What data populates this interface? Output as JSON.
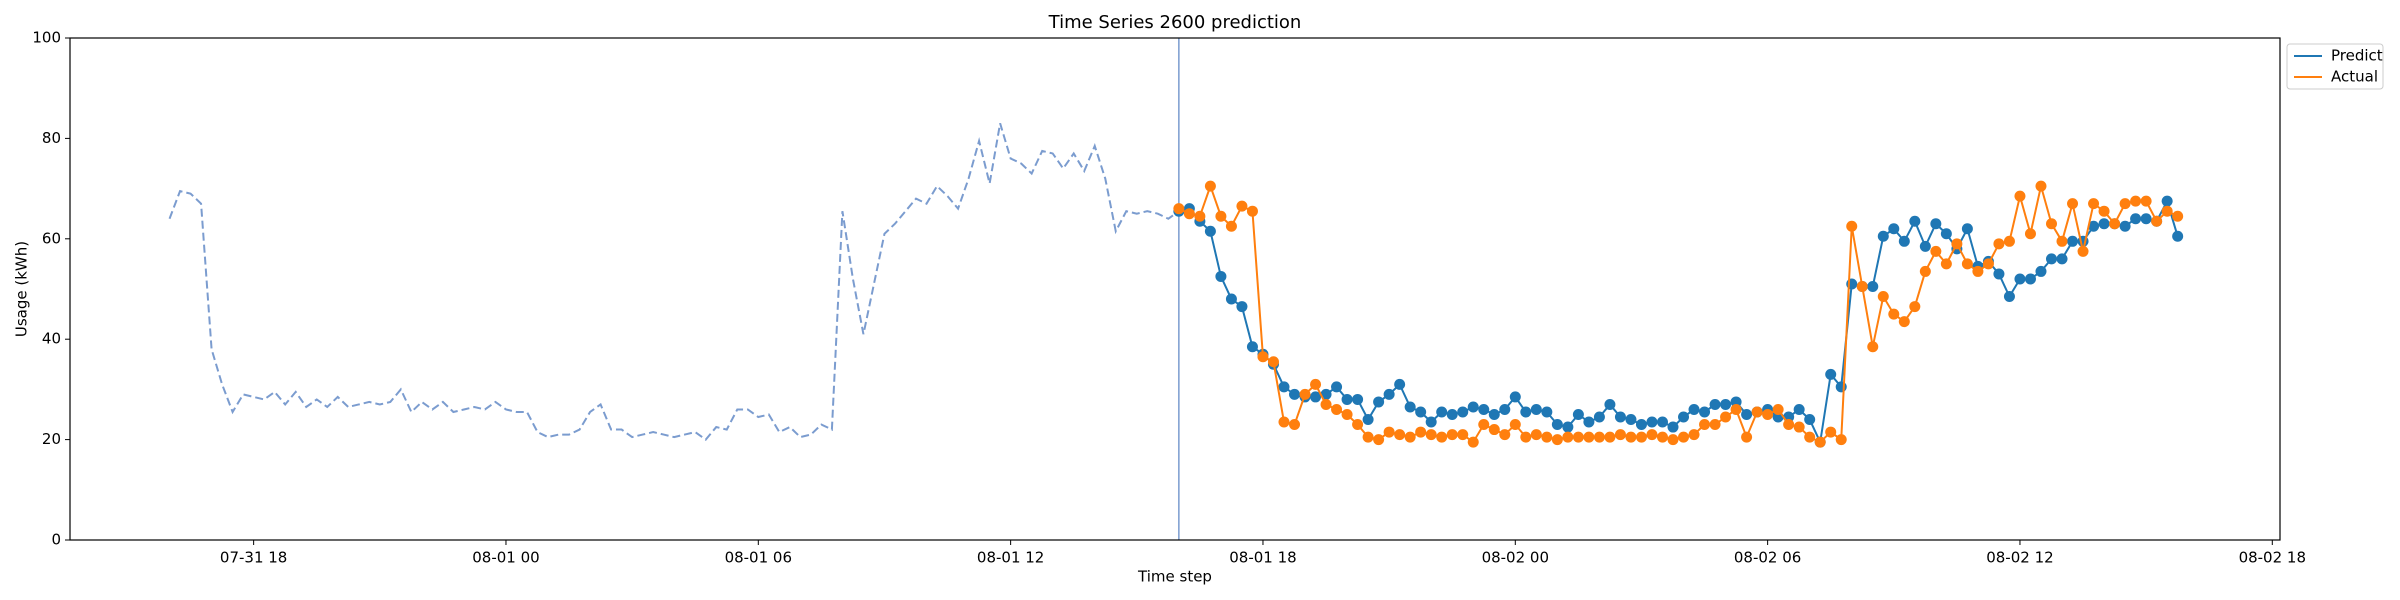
{
  "chart_data": {
    "type": "line",
    "title": "Time Series 2600 prediction",
    "xlabel": "Time step",
    "ylabel": "Usage (kWh)",
    "xlim": [
      "07-31 13:38",
      "08-02 18:11"
    ],
    "ylim": [
      0,
      100
    ],
    "yticks": [
      0,
      20,
      40,
      60,
      80,
      100
    ],
    "xticks": [
      {
        "value": "07-31 18:00",
        "label": "07-31 18"
      },
      {
        "value": "08-01 00:00",
        "label": "08-01 00"
      },
      {
        "value": "08-01 06:00",
        "label": "08-01 06"
      },
      {
        "value": "08-01 12:00",
        "label": "08-01 12"
      },
      {
        "value": "08-01 18:00",
        "label": "08-01 18"
      },
      {
        "value": "08-02 00:00",
        "label": "08-02 00"
      },
      {
        "value": "08-02 06:00",
        "label": "08-02 06"
      },
      {
        "value": "08-02 12:00",
        "label": "08-02 12"
      },
      {
        "value": "08-02 18:00",
        "label": "08-02 18"
      }
    ],
    "grid": false,
    "legend": "upper right outside",
    "vline": {
      "x": "08-01 16:00",
      "color": "#7b9ccf"
    },
    "history": {
      "color": "#7b9ccf",
      "dashed": true,
      "x": [
        "07-31 16:00",
        "07-31 16:15",
        "07-31 16:30",
        "07-31 16:45",
        "07-31 17:00",
        "07-31 17:15",
        "07-31 17:30",
        "07-31 17:45",
        "07-31 18:00",
        "07-31 18:15",
        "07-31 18:30",
        "07-31 18:45",
        "07-31 19:00",
        "07-31 19:15",
        "07-31 19:30",
        "07-31 19:45",
        "07-31 20:00",
        "07-31 20:15",
        "07-31 20:30",
        "07-31 20:45",
        "07-31 21:00",
        "07-31 21:15",
        "07-31 21:30",
        "07-31 21:45",
        "07-31 22:00",
        "07-31 22:15",
        "07-31 22:30",
        "07-31 22:45",
        "07-31 23:00",
        "07-31 23:15",
        "07-31 23:30",
        "07-31 23:45",
        "08-01 00:00",
        "08-01 00:15",
        "08-01 00:30",
        "08-01 00:45",
        "08-01 01:00",
        "08-01 01:15",
        "08-01 01:30",
        "08-01 01:45",
        "08-01 02:00",
        "08-01 02:15",
        "08-01 02:30",
        "08-01 02:45",
        "08-01 03:00",
        "08-01 03:15",
        "08-01 03:30",
        "08-01 03:45",
        "08-01 04:00",
        "08-01 04:15",
        "08-01 04:30",
        "08-01 04:45",
        "08-01 05:00",
        "08-01 05:15",
        "08-01 05:30",
        "08-01 05:45",
        "08-01 06:00",
        "08-01 06:15",
        "08-01 06:30",
        "08-01 06:45",
        "08-01 07:00",
        "08-01 07:15",
        "08-01 07:30",
        "08-01 07:45",
        "08-01 08:00",
        "08-01 08:15",
        "08-01 08:30",
        "08-01 08:45",
        "08-01 09:00",
        "08-01 09:15",
        "08-01 09:30",
        "08-01 09:45",
        "08-01 10:00",
        "08-01 10:15",
        "08-01 10:30",
        "08-01 10:45",
        "08-01 11:00",
        "08-01 11:15",
        "08-01 11:30",
        "08-01 11:45",
        "08-01 12:00",
        "08-01 12:15",
        "08-01 12:30",
        "08-01 12:45",
        "08-01 13:00",
        "08-01 13:15",
        "08-01 13:30",
        "08-01 13:45",
        "08-01 14:00",
        "08-01 14:15",
        "08-01 14:30",
        "08-01 14:45",
        "08-01 15:00",
        "08-01 15:15",
        "08-01 15:30",
        "08-01 15:45",
        "08-01 16:00"
      ],
      "values": [
        64,
        69.5,
        69,
        67,
        38,
        31,
        25.5,
        29,
        28.5,
        28,
        29.5,
        27,
        29.5,
        26.5,
        28,
        26.5,
        28.5,
        26.5,
        27,
        27.5,
        27,
        27.5,
        30,
        25.5,
        27.5,
        26,
        27.5,
        25.5,
        26,
        26.5,
        26,
        27.5,
        26,
        25.5,
        25.5,
        21.5,
        20.5,
        21,
        21,
        22,
        25.5,
        27,
        22,
        22,
        20.5,
        21,
        21.5,
        21,
        20.5,
        21,
        21.5,
        20,
        22.5,
        22,
        26,
        26,
        24.5,
        25,
        21.5,
        22.5,
        20.5,
        21,
        23,
        22,
        65.5,
        52,
        41,
        51,
        61,
        63,
        65.5,
        68,
        67,
        70.5,
        68.5,
        66,
        72,
        79.5,
        71,
        83,
        76,
        75,
        73,
        77.5,
        77,
        74,
        77,
        73.5,
        78.5,
        72,
        61.5,
        65.5,
        65,
        65.5,
        65,
        64,
        65.5
      ]
    },
    "x": [
      "08-01 16:00",
      "08-01 16:15",
      "08-01 16:30",
      "08-01 16:45",
      "08-01 17:00",
      "08-01 17:15",
      "08-01 17:30",
      "08-01 17:45",
      "08-01 18:00",
      "08-01 18:15",
      "08-01 18:30",
      "08-01 18:45",
      "08-01 19:00",
      "08-01 19:15",
      "08-01 19:30",
      "08-01 19:45",
      "08-01 20:00",
      "08-01 20:15",
      "08-01 20:30",
      "08-01 20:45",
      "08-01 21:00",
      "08-01 21:15",
      "08-01 21:30",
      "08-01 21:45",
      "08-01 22:00",
      "08-01 22:15",
      "08-01 22:30",
      "08-01 22:45",
      "08-01 23:00",
      "08-01 23:15",
      "08-01 23:30",
      "08-01 23:45",
      "08-02 00:00",
      "08-02 00:15",
      "08-02 00:30",
      "08-02 00:45",
      "08-02 01:00",
      "08-02 01:15",
      "08-02 01:30",
      "08-02 01:45",
      "08-02 02:00",
      "08-02 02:15",
      "08-02 02:30",
      "08-02 02:45",
      "08-02 03:00",
      "08-02 03:15",
      "08-02 03:30",
      "08-02 03:45",
      "08-02 04:00",
      "08-02 04:15",
      "08-02 04:30",
      "08-02 04:45",
      "08-02 05:00",
      "08-02 05:15",
      "08-02 05:30",
      "08-02 05:45",
      "08-02 06:00",
      "08-02 06:15",
      "08-02 06:30",
      "08-02 06:45",
      "08-02 07:00",
      "08-02 07:15",
      "08-02 07:30",
      "08-02 07:45",
      "08-02 08:00",
      "08-02 08:15",
      "08-02 08:30",
      "08-02 08:45",
      "08-02 09:00",
      "08-02 09:15",
      "08-02 09:30",
      "08-02 09:45",
      "08-02 10:00",
      "08-02 10:15",
      "08-02 10:30",
      "08-02 10:45",
      "08-02 11:00",
      "08-02 11:15",
      "08-02 11:30",
      "08-02 11:45",
      "08-02 12:00",
      "08-02 12:15",
      "08-02 12:30",
      "08-02 12:45",
      "08-02 13:00",
      "08-02 13:15",
      "08-02 13:30",
      "08-02 13:45",
      "08-02 14:00",
      "08-02 14:15",
      "08-02 14:30",
      "08-02 14:45",
      "08-02 15:00",
      "08-02 15:15",
      "08-02 15:30",
      "08-02 15:45"
    ],
    "series": [
      {
        "name": "Predict",
        "color": "#1f77b4",
        "values": [
          65.5,
          66,
          63.5,
          61.5,
          52.5,
          48,
          46.5,
          38.5,
          37,
          35,
          30.5,
          29,
          28.5,
          28.5,
          29,
          30.5,
          28,
          28,
          24,
          27.5,
          29,
          31,
          26.5,
          25.5,
          23.5,
          25.5,
          25,
          25.5,
          26.5,
          26,
          25,
          26,
          28.5,
          25.5,
          26,
          25.5,
          23,
          22.5,
          25,
          23.5,
          24.5,
          27,
          24.5,
          24,
          23,
          23.5,
          23.5,
          22.5,
          24.5,
          26,
          25.5,
          27,
          27,
          27.5,
          25,
          25.5,
          26,
          24.5,
          24.5,
          26,
          24,
          19.5,
          33,
          30.5,
          51,
          50.5,
          50.5,
          60.5,
          62,
          59.5,
          63.5,
          58.5,
          63,
          61,
          58,
          62,
          54.5,
          55.5,
          53,
          48.5,
          52,
          52,
          53.5,
          56,
          56,
          59.5,
          59.5,
          62.5,
          63,
          63,
          62.5,
          64,
          64,
          63.5,
          67.5,
          60.5
        ]
      },
      {
        "name": "Actual",
        "color": "#ff7f0e",
        "values": [
          66,
          65,
          64.5,
          70.5,
          64.5,
          62.5,
          66.5,
          65.5,
          36.5,
          35.5,
          23.5,
          23,
          29,
          31,
          27,
          26,
          25,
          23,
          20.5,
          20,
          21.5,
          21,
          20.5,
          21.5,
          21,
          20.5,
          21,
          21,
          19.5,
          23,
          22,
          21,
          23,
          20.5,
          21,
          20.5,
          20,
          20.5,
          20.5,
          20.5,
          20.5,
          20.5,
          21,
          20.5,
          20.5,
          21,
          20.5,
          20,
          20.5,
          21,
          23,
          23,
          24.5,
          26,
          20.5,
          25.5,
          25,
          26,
          23,
          22.5,
          20.5,
          19.5,
          21.5,
          20,
          62.5,
          50.5,
          38.5,
          48.5,
          45,
          43.5,
          46.5,
          53.5,
          57.5,
          55,
          59,
          55,
          53.5,
          55,
          59,
          59.5,
          68.5,
          61,
          70.5,
          63,
          59.5,
          67,
          57.5,
          67,
          65.5,
          63,
          67,
          67.5,
          67.5,
          63.5,
          65.5,
          64.5
        ]
      }
    ]
  }
}
